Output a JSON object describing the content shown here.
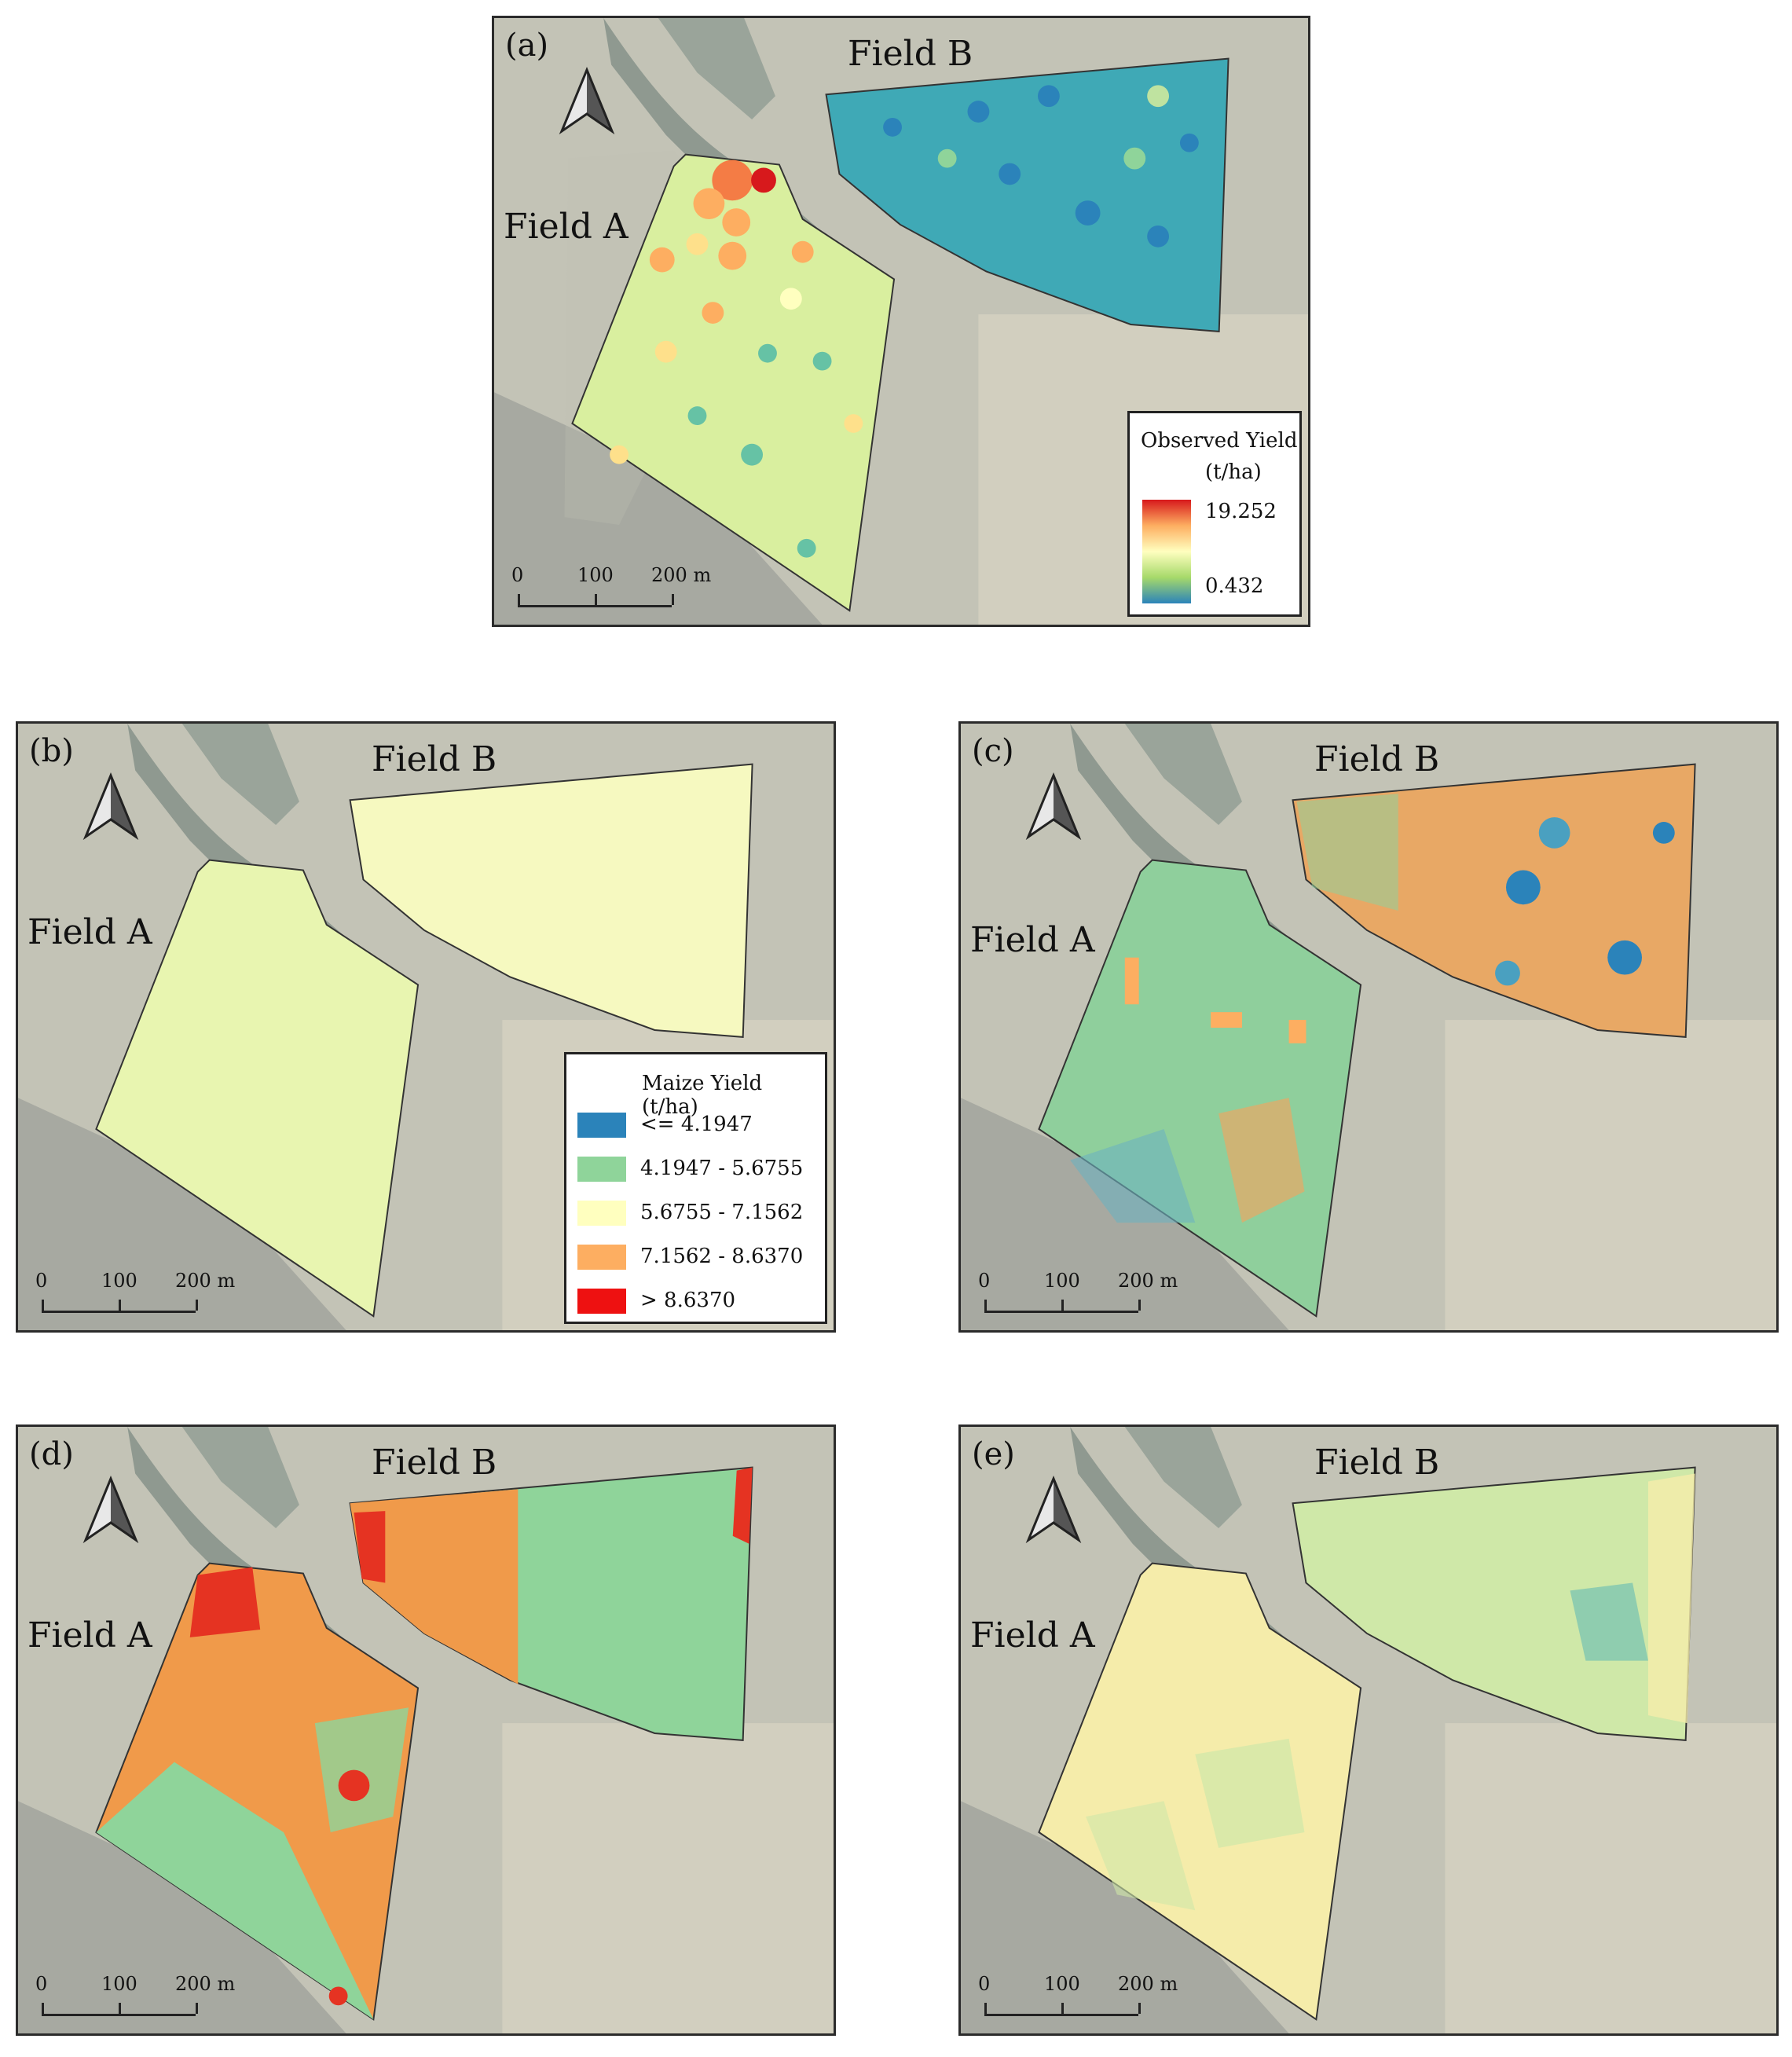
{
  "panels": [
    {
      "label": "(a)",
      "field_a": "Field A",
      "field_b": "Field B"
    },
    {
      "label": "(b)",
      "field_a": "Field A",
      "field_b": "Field B"
    },
    {
      "label": "(c)",
      "field_a": "Field A",
      "field_b": "Field B"
    },
    {
      "label": "(d)",
      "field_a": "Field A",
      "field_b": "Field B"
    },
    {
      "label": "(e)",
      "field_a": "Field A",
      "field_b": "Field B"
    }
  ],
  "scale": {
    "t0": "0",
    "t1": "100",
    "t2": "200 m"
  },
  "legend_observed": {
    "title_line1": "Observed Yield",
    "title_line2": "(t/ha)",
    "max": "19.252",
    "min": "0.432",
    "gradient_colors": [
      "#d7191c",
      "#fdae61",
      "#ffffbf",
      "#a6d96a",
      "#2b83ba"
    ]
  },
  "legend_maize": {
    "title": "Maize Yield (t/ha)",
    "classes": [
      {
        "label": "<= 4.1947",
        "color": "#2b83ba"
      },
      {
        "label": "4.1947 - 5.6755",
        "color": "#8fd49a"
      },
      {
        "label": "5.6755 - 7.1562",
        "color": "#ffffbf"
      },
      {
        "label": "7.1562 - 8.6370",
        "color": "#fdae61"
      },
      {
        "label": "> 8.6370",
        "color": "#ee1111"
      }
    ]
  },
  "colors": {
    "panel_a_field_a": "#d9ef9f",
    "panel_a_field_b": "#3fa9b6",
    "panel_b_field_a": "#e8f5b0",
    "panel_b_field_b": "#f6f9c0",
    "panel_c_field_a": "#8fcf9c",
    "panel_c_field_b": "#e8a865",
    "panel_d_field_a": "#f09a4a",
    "panel_d_field_b": "#8fd49a",
    "panel_e_field_a": "#f5ecaa",
    "panel_e_field_b": "#cfe8a8"
  },
  "icons": {
    "north_arrow": "north-arrow-icon"
  }
}
